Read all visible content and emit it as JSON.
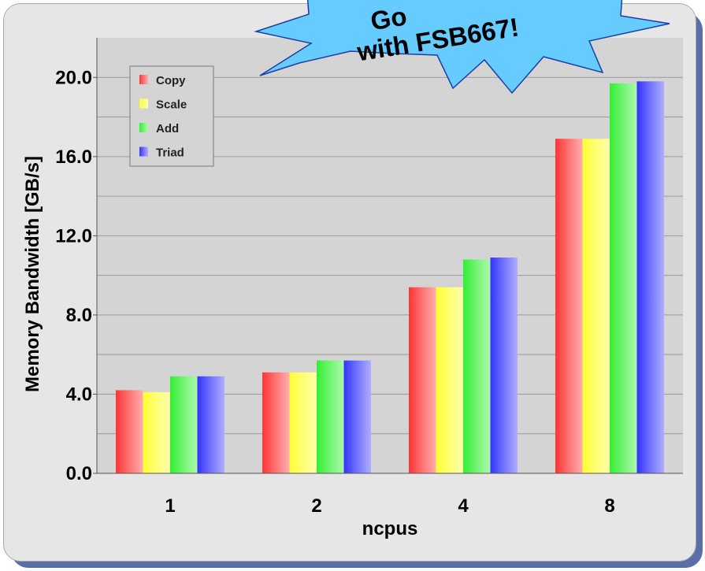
{
  "chart_data": {
    "type": "bar",
    "categories": [
      "1",
      "2",
      "4",
      "8"
    ],
    "series": [
      {
        "name": "Copy",
        "color": "#ff3333",
        "values": [
          4.2,
          5.1,
          9.4,
          16.9
        ]
      },
      {
        "name": "Scale",
        "color": "#ffff33",
        "values": [
          4.1,
          5.1,
          9.4,
          16.9
        ]
      },
      {
        "name": "Add",
        "color": "#33ee33",
        "values": [
          4.9,
          5.7,
          10.8,
          19.7
        ]
      },
      {
        "name": "Triad",
        "color": "#3333ff",
        "values": [
          4.9,
          5.7,
          10.9,
          19.8
        ]
      }
    ],
    "xlabel": "ncpus",
    "ylabel": "Memory Bandwidth [GB/s]",
    "ylim": [
      0,
      22
    ],
    "yticks": [
      "0.0",
      "4.0",
      "8.0",
      "12.0",
      "16.0",
      "20.0"
    ],
    "grid": true,
    "legend_position": "top-left",
    "plot_background": "#d4d4d4"
  },
  "callout": {
    "lines": [
      "Go",
      "with FSB667!"
    ],
    "color": "#66ccff"
  }
}
